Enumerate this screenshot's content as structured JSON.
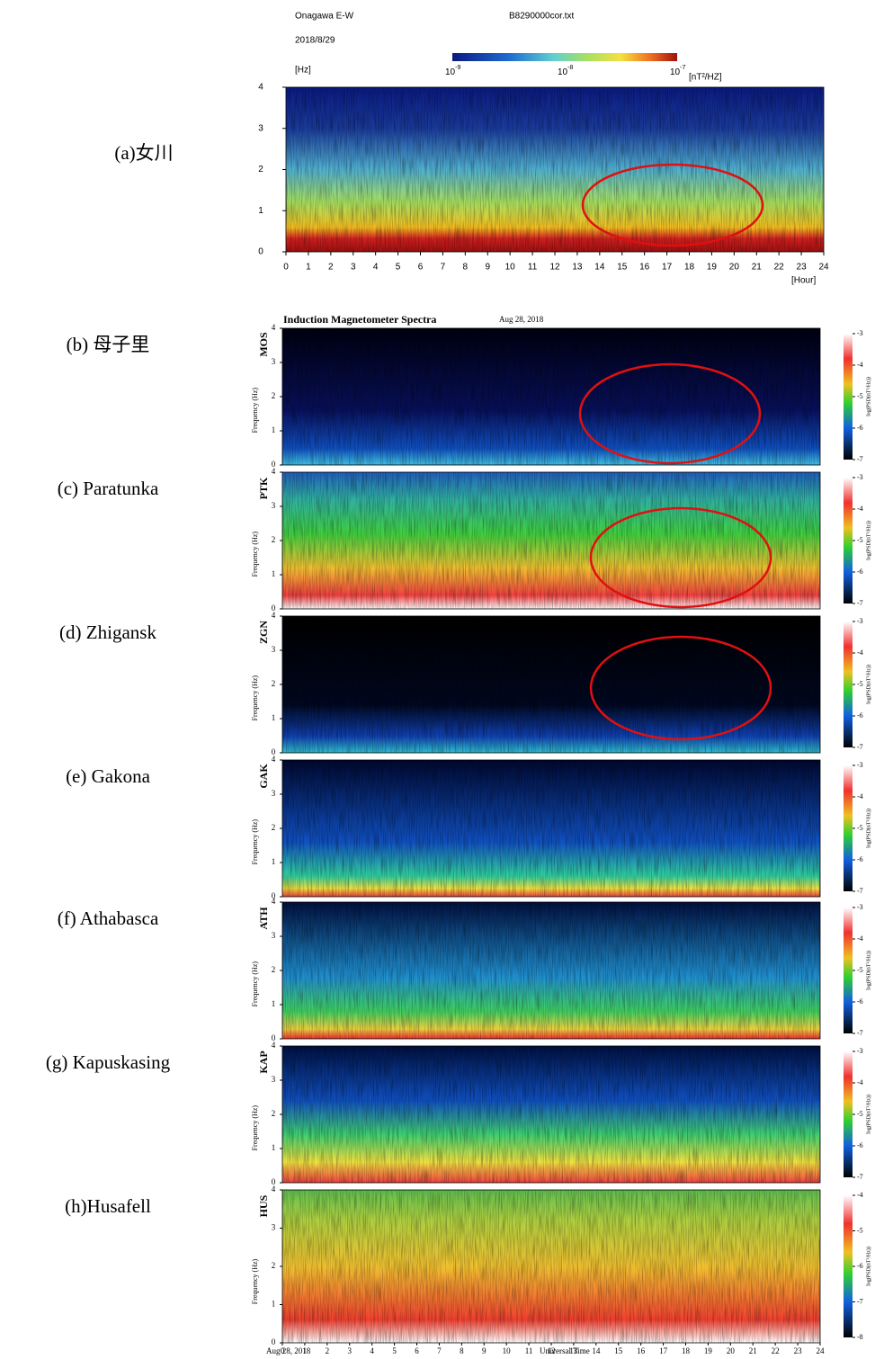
{
  "panel_a": {
    "label": "(a)女川",
    "station": "Onagawa E-W",
    "file": "B8290000cor.txt",
    "date": "2018/8/29",
    "y_unit": "[Hz]",
    "x_unit": "[Hour]",
    "yticks": [
      0,
      1,
      2,
      3,
      4
    ],
    "xticks": [
      0,
      1,
      2,
      3,
      4,
      5,
      6,
      7,
      8,
      9,
      10,
      11,
      12,
      13,
      14,
      15,
      16,
      17,
      18,
      19,
      20,
      21,
      22,
      23,
      24
    ],
    "colorbar": {
      "ticks": [
        {
          "base": "10",
          "exp": "-9"
        },
        {
          "base": "10",
          "exp": "-8"
        },
        {
          "base": "10",
          "exp": "-7"
        }
      ],
      "unit": "[nT²/HZ]"
    }
  },
  "header": {
    "title": "Induction Magnetometer Spectra",
    "date": "Aug 28, 2018"
  },
  "y_label": "Frequency (Hz)",
  "cbar_label": "log(PSD(nT²/Hz))",
  "stations": [
    {
      "label": "(b) 母子里",
      "code": "MOS",
      "yticks": [
        0,
        1,
        2,
        3,
        4
      ],
      "cbar_ticks": [
        -3,
        -4,
        -5,
        -6,
        -7
      ]
    },
    {
      "label": "(c) Paratunka",
      "code": "PTK",
      "yticks": [
        0,
        1,
        2,
        3,
        4
      ],
      "cbar_ticks": [
        -3,
        -4,
        -5,
        -6,
        -7
      ]
    },
    {
      "label": "(d) Zhigansk",
      "code": "ZGN",
      "yticks": [
        0,
        1,
        2,
        3,
        4
      ],
      "cbar_ticks": [
        -3,
        -4,
        -5,
        -6,
        -7
      ]
    },
    {
      "label": "(e) Gakona",
      "code": "GAK",
      "yticks": [
        0,
        1,
        2,
        3,
        4
      ],
      "cbar_ticks": [
        -3,
        -4,
        -5,
        -6,
        -7
      ]
    },
    {
      "label": "(f) Athabasca",
      "code": "ATH",
      "yticks": [
        0,
        1,
        2,
        3,
        4
      ],
      "cbar_ticks": [
        -3,
        -4,
        -5,
        -6,
        -7
      ]
    },
    {
      "label": "(g) Kapuskasing",
      "code": "KAP",
      "yticks": [
        0,
        1,
        2,
        3,
        4
      ],
      "cbar_ticks": [
        -3,
        -4,
        -5,
        -6,
        -7
      ]
    },
    {
      "label": "(h)Husafell",
      "code": "HUS",
      "yticks": [
        0,
        1,
        2,
        3,
        4
      ],
      "cbar_ticks": [
        -4,
        -5,
        -6,
        -7,
        -8
      ]
    }
  ],
  "bottom": {
    "xticks": [
      0,
      1,
      2,
      3,
      4,
      5,
      6,
      7,
      8,
      9,
      10,
      11,
      12,
      13,
      14,
      15,
      16,
      17,
      18,
      19,
      20,
      21,
      22,
      23,
      24
    ],
    "date": "Aug 28, 2018",
    "x_label": "Universal Time"
  }
}
